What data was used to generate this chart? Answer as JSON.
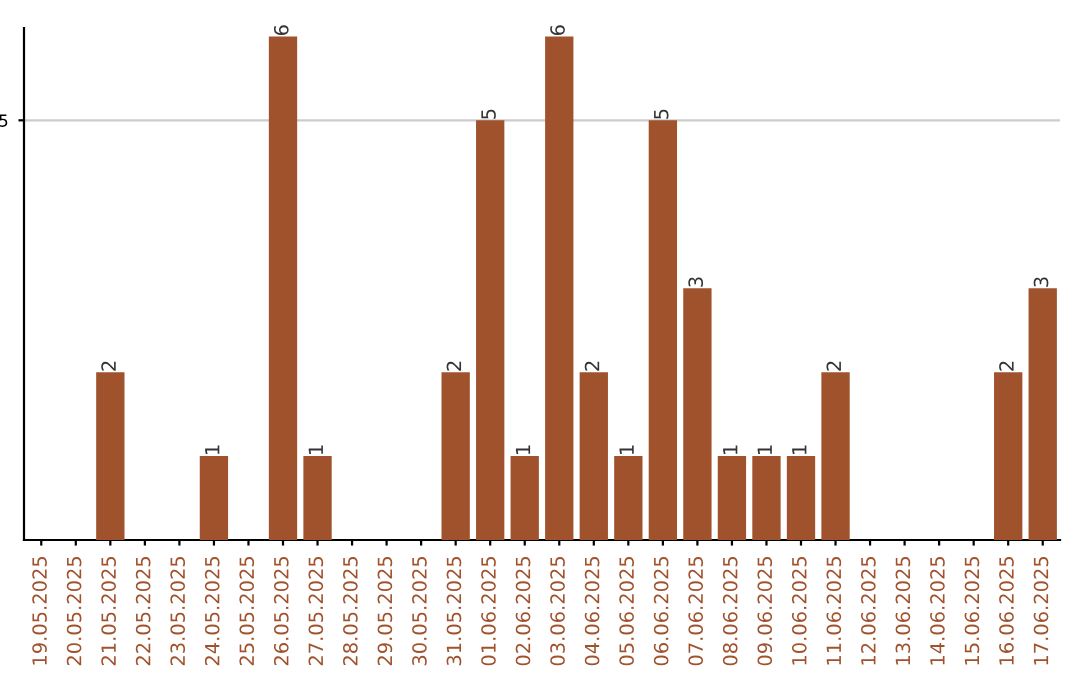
{
  "chart_data": {
    "type": "bar",
    "categories": [
      "19.05.2025",
      "20.05.2025",
      "21.05.2025",
      "22.05.2025",
      "23.05.2025",
      "24.05.2025",
      "25.05.2025",
      "26.05.2025",
      "27.05.2025",
      "28.05.2025",
      "29.05.2025",
      "30.05.2025",
      "31.05.2025",
      "01.06.2025",
      "02.06.2025",
      "03.06.2025",
      "04.06.2025",
      "05.06.2025",
      "06.06.2025",
      "07.06.2025",
      "08.06.2025",
      "09.06.2025",
      "10.06.2025",
      "11.06.2025",
      "12.06.2025",
      "13.06.2025",
      "14.06.2025",
      "15.06.2025",
      "16.06.2025",
      "17.06.2025"
    ],
    "values": [
      0,
      0,
      2,
      0,
      0,
      1,
      0,
      6,
      1,
      0,
      0,
      0,
      2,
      5,
      1,
      6,
      2,
      1,
      5,
      3,
      1,
      1,
      1,
      2,
      0,
      0,
      0,
      0,
      2,
      3
    ],
    "value_labels": [
      null,
      null,
      "2",
      null,
      null,
      "1",
      null,
      "6",
      "1",
      null,
      null,
      null,
      "2",
      "5",
      "1",
      "6",
      "2",
      "1",
      "5",
      "3",
      "1",
      "1",
      "1",
      "2",
      null,
      null,
      null,
      null,
      "2",
      "3"
    ],
    "color": "#a0522d",
    "ylim": [
      0,
      6.1
    ],
    "yticks": [
      5
    ],
    "grid": "y"
  }
}
